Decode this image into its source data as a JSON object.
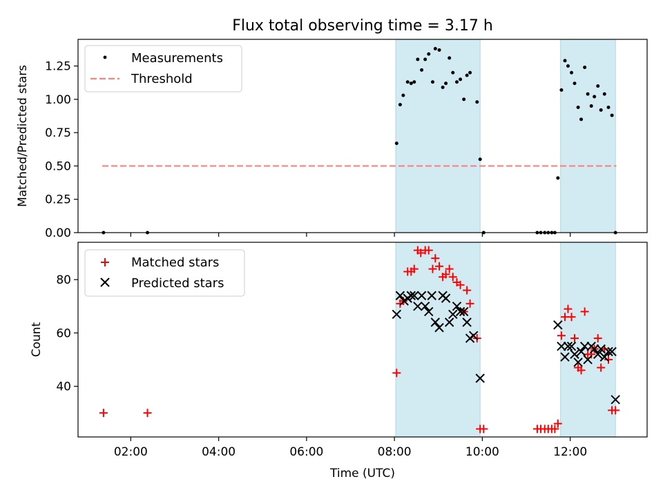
{
  "chart_data": {
    "type": "scatter",
    "title": "Flux total observing time = 3.17 h",
    "xlabel": "Time (UTC)",
    "xlim": [
      0.8,
      13.75
    ],
    "x_ticks": [
      {
        "value": 2,
        "label": "02:00"
      },
      {
        "value": 4,
        "label": "04:00"
      },
      {
        "value": 6,
        "label": "06:00"
      },
      {
        "value": 8,
        "label": "08:00"
      },
      {
        "value": 10,
        "label": "10:00"
      },
      {
        "value": 12,
        "label": "12:00"
      }
    ],
    "shaded_intervals": [
      [
        8.03,
        9.95
      ],
      [
        11.78,
        13.03
      ]
    ],
    "colors": {
      "shade": "#add8e6",
      "measurements": "#000000",
      "threshold": "#ff7f7f",
      "matched": "#ff0000",
      "predicted": "#000000"
    },
    "panels": [
      {
        "ylabel": "Matched/Predicted stars",
        "ylim": [
          0,
          1.45
        ],
        "y_ticks": [
          {
            "value": 0,
            "label": "0.00"
          },
          {
            "value": 0.25,
            "label": "0.25"
          },
          {
            "value": 0.5,
            "label": "0.50"
          },
          {
            "value": 0.75,
            "label": "0.75"
          },
          {
            "value": 1.0,
            "label": "1.00"
          },
          {
            "value": 1.25,
            "label": "1.25"
          }
        ],
        "legend": {
          "placement": "upper-left",
          "entries": [
            "Measurements",
            "Threshold"
          ]
        },
        "threshold": {
          "name": "Threshold",
          "y": 0.5,
          "x_range": [
            1.35,
            13.05
          ]
        },
        "series": [
          {
            "name": "Measurements",
            "marker": "dot",
            "points": [
              [
                1.38,
                0.0
              ],
              [
                2.38,
                0.0
              ],
              [
                8.05,
                0.67
              ],
              [
                8.13,
                0.96
              ],
              [
                8.2,
                1.03
              ],
              [
                8.3,
                1.13
              ],
              [
                8.38,
                1.12
              ],
              [
                8.45,
                1.13
              ],
              [
                8.53,
                1.3
              ],
              [
                8.62,
                1.22
              ],
              [
                8.7,
                1.3
              ],
              [
                8.78,
                1.34
              ],
              [
                8.87,
                1.13
              ],
              [
                8.93,
                1.38
              ],
              [
                9.02,
                1.37
              ],
              [
                9.1,
                1.09
              ],
              [
                9.17,
                1.12
              ],
              [
                9.25,
                1.31
              ],
              [
                9.33,
                1.2
              ],
              [
                9.42,
                1.13
              ],
              [
                9.5,
                1.15
              ],
              [
                9.58,
                1.0
              ],
              [
                9.65,
                1.18
              ],
              [
                9.72,
                1.2
              ],
              [
                9.88,
                0.98
              ],
              [
                9.95,
                0.55
              ],
              [
                10.03,
                0.0
              ],
              [
                11.25,
                0.0
              ],
              [
                11.33,
                0.0
              ],
              [
                11.42,
                0.0
              ],
              [
                11.5,
                0.0
              ],
              [
                11.58,
                0.0
              ],
              [
                11.65,
                0.0
              ],
              [
                11.72,
                0.41
              ],
              [
                11.8,
                1.07
              ],
              [
                11.88,
                1.29
              ],
              [
                11.95,
                1.25
              ],
              [
                12.03,
                1.2
              ],
              [
                12.1,
                1.12
              ],
              [
                12.18,
                0.94
              ],
              [
                12.25,
                0.85
              ],
              [
                12.33,
                1.24
              ],
              [
                12.4,
                1.04
              ],
              [
                12.48,
                0.95
              ],
              [
                12.55,
                1.02
              ],
              [
                12.63,
                1.1
              ],
              [
                12.7,
                0.92
              ],
              [
                12.78,
                1.04
              ],
              [
                12.87,
                0.94
              ],
              [
                12.95,
                0.88
              ],
              [
                13.03,
                0.0
              ]
            ]
          }
        ]
      },
      {
        "ylabel": "Count",
        "ylim": [
          21,
          94
        ],
        "y_ticks": [
          {
            "value": 40,
            "label": "40"
          },
          {
            "value": 60,
            "label": "60"
          },
          {
            "value": 80,
            "label": "80"
          }
        ],
        "legend": {
          "placement": "upper-left",
          "entries": [
            "Matched stars",
            "Predicted stars"
          ]
        },
        "series": [
          {
            "name": "Matched stars",
            "marker": "plus",
            "points": [
              [
                1.38,
                30
              ],
              [
                2.38,
                30
              ],
              [
                8.05,
                45
              ],
              [
                8.13,
                71
              ],
              [
                8.2,
                72
              ],
              [
                8.3,
                83
              ],
              [
                8.38,
                83
              ],
              [
                8.45,
                84
              ],
              [
                8.53,
                91
              ],
              [
                8.6,
                90
              ],
              [
                8.7,
                91
              ],
              [
                8.78,
                91
              ],
              [
                8.87,
                84
              ],
              [
                8.93,
                88
              ],
              [
                9.02,
                85
              ],
              [
                9.1,
                81
              ],
              [
                9.17,
                82
              ],
              [
                9.25,
                84
              ],
              [
                9.33,
                81
              ],
              [
                9.42,
                79
              ],
              [
                9.5,
                78
              ],
              [
                9.58,
                68
              ],
              [
                9.65,
                76
              ],
              [
                9.72,
                71
              ],
              [
                9.88,
                58
              ],
              [
                9.95,
                24
              ],
              [
                10.03,
                24
              ],
              [
                11.25,
                24
              ],
              [
                11.33,
                24
              ],
              [
                11.42,
                24
              ],
              [
                11.5,
                24
              ],
              [
                11.58,
                24
              ],
              [
                11.65,
                24
              ],
              [
                11.72,
                26
              ],
              [
                11.8,
                59
              ],
              [
                11.88,
                66
              ],
              [
                11.95,
                69
              ],
              [
                12.03,
                66
              ],
              [
                12.1,
                58
              ],
              [
                12.18,
                47
              ],
              [
                12.25,
                46
              ],
              [
                12.33,
                68
              ],
              [
                12.4,
                52
              ],
              [
                12.48,
                52
              ],
              [
                12.55,
                54
              ],
              [
                12.63,
                58
              ],
              [
                12.7,
                47
              ],
              [
                12.78,
                54
              ],
              [
                12.87,
                50
              ],
              [
                12.95,
                31
              ],
              [
                13.03,
                31
              ]
            ]
          },
          {
            "name": "Predicted stars",
            "marker": "x",
            "points": [
              [
                8.05,
                67
              ],
              [
                8.13,
                74
              ],
              [
                8.22,
                72
              ],
              [
                8.3,
                73
              ],
              [
                8.38,
                74
              ],
              [
                8.45,
                74
              ],
              [
                8.53,
                70
              ],
              [
                8.62,
                74
              ],
              [
                8.7,
                70
              ],
              [
                8.78,
                68
              ],
              [
                8.85,
                74
              ],
              [
                8.93,
                64
              ],
              [
                9.02,
                62
              ],
              [
                9.1,
                74
              ],
              [
                9.17,
                73
              ],
              [
                9.25,
                64
              ],
              [
                9.33,
                67
              ],
              [
                9.42,
                70
              ],
              [
                9.5,
                68
              ],
              [
                9.58,
                68
              ],
              [
                9.65,
                64
              ],
              [
                9.72,
                58
              ],
              [
                9.8,
                59
              ],
              [
                9.95,
                43
              ],
              [
                11.72,
                63
              ],
              [
                11.8,
                55
              ],
              [
                11.88,
                51
              ],
              [
                11.95,
                55
              ],
              [
                12.03,
                55
              ],
              [
                12.1,
                52
              ],
              [
                12.18,
                49
              ],
              [
                12.25,
                53
              ],
              [
                12.33,
                55
              ],
              [
                12.4,
                50
              ],
              [
                12.48,
                55
              ],
              [
                12.55,
                54
              ],
              [
                12.63,
                52
              ],
              [
                12.7,
                54
              ],
              [
                12.78,
                51
              ],
              [
                12.87,
                53
              ],
              [
                12.95,
                53
              ],
              [
                13.03,
                35
              ]
            ]
          }
        ]
      }
    ]
  }
}
